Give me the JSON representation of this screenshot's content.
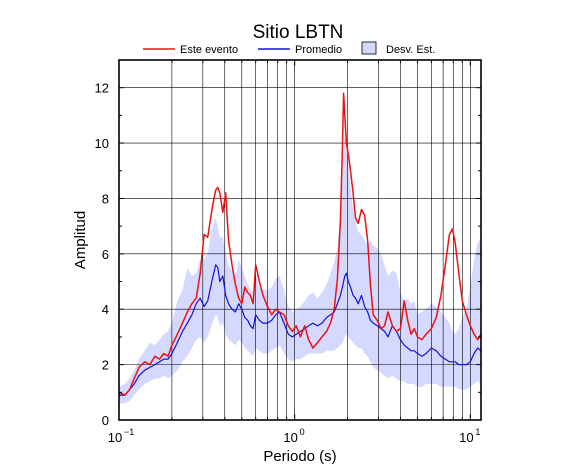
{
  "chart_data": {
    "type": "line",
    "title": "Sitio LBTN",
    "xlabel": "Periodo (s)",
    "ylabel": "Amplitud",
    "xscale": "log",
    "xlim": [
      0.1,
      11.5
    ],
    "ylim": [
      0,
      13
    ],
    "grid": true,
    "legend_placement": "top-center",
    "x_ticks": [
      {
        "base": "10",
        "exp": "−1",
        "value": 0.1
      },
      {
        "base": "10",
        "exp": "0",
        "value": 1
      },
      {
        "base": "10",
        "exp": "1",
        "value": 10
      }
    ],
    "y_ticks": [
      "0",
      "2",
      "4",
      "6",
      "8",
      "10",
      "12"
    ],
    "legend": [
      {
        "label": "Este evento",
        "color": "#ee1111",
        "kind": "line"
      },
      {
        "label": "Promedio",
        "color": "#1111dd",
        "kind": "line"
      },
      {
        "label": "Desv. Est.",
        "color": "#d6d9ff",
        "kind": "patch"
      }
    ],
    "series": [
      {
        "name": "Este evento",
        "color": "#ee1111",
        "x": [
          0.1,
          0.108,
          0.115,
          0.122,
          0.13,
          0.14,
          0.15,
          0.16,
          0.17,
          0.18,
          0.19,
          0.2,
          0.215,
          0.23,
          0.245,
          0.26,
          0.275,
          0.29,
          0.305,
          0.32,
          0.34,
          0.355,
          0.365,
          0.375,
          0.39,
          0.405,
          0.42,
          0.44,
          0.46,
          0.48,
          0.5,
          0.52,
          0.54,
          0.56,
          0.58,
          0.6,
          0.63,
          0.66,
          0.7,
          0.74,
          0.78,
          0.82,
          0.87,
          0.92,
          0.97,
          1.02,
          1.08,
          1.14,
          1.2,
          1.27,
          1.35,
          1.43,
          1.52,
          1.6,
          1.68,
          1.75,
          1.82,
          1.87,
          1.9,
          1.93,
          1.97,
          2.02,
          2.08,
          2.15,
          2.22,
          2.3,
          2.4,
          2.5,
          2.6,
          2.7,
          2.8,
          2.95,
          3.1,
          3.25,
          3.4,
          3.6,
          3.8,
          4.0,
          4.2,
          4.4,
          4.6,
          4.8,
          5.0,
          5.3,
          5.6,
          6.0,
          6.4,
          6.8,
          7.2,
          7.6,
          7.9,
          8.2,
          8.6,
          9.0,
          9.5,
          10.0,
          10.5,
          11.0,
          11.5
        ],
        "y": [
          1.0,
          0.9,
          1.1,
          1.5,
          1.9,
          2.1,
          2.0,
          2.3,
          2.2,
          2.4,
          2.3,
          2.7,
          3.1,
          3.5,
          3.9,
          4.2,
          4.4,
          5.3,
          6.7,
          6.6,
          7.7,
          8.3,
          8.4,
          8.2,
          7.5,
          8.2,
          6.5,
          5.6,
          4.9,
          4.4,
          4.2,
          4.8,
          4.6,
          4.5,
          4.2,
          5.6,
          5.0,
          4.5,
          4.1,
          3.8,
          4.0,
          3.9,
          3.8,
          3.4,
          3.2,
          3.4,
          3.0,
          3.4,
          2.9,
          2.6,
          2.8,
          3.0,
          3.2,
          3.5,
          4.0,
          5.1,
          7.2,
          9.8,
          11.8,
          11.0,
          10.0,
          9.6,
          9.0,
          8.2,
          7.3,
          7.1,
          7.6,
          7.4,
          6.5,
          4.9,
          3.8,
          3.6,
          3.3,
          3.4,
          3.9,
          3.4,
          3.2,
          3.3,
          4.3,
          3.6,
          3.1,
          3.3,
          3.0,
          2.9,
          3.1,
          3.3,
          3.7,
          4.5,
          5.6,
          6.7,
          6.9,
          6.4,
          5.3,
          4.3,
          3.8,
          3.4,
          3.1,
          2.9,
          3.1
        ]
      },
      {
        "name": "Promedio",
        "color": "#1111dd",
        "x": [
          0.1,
          0.108,
          0.115,
          0.122,
          0.13,
          0.14,
          0.15,
          0.16,
          0.17,
          0.18,
          0.19,
          0.2,
          0.215,
          0.23,
          0.245,
          0.26,
          0.275,
          0.29,
          0.305,
          0.32,
          0.34,
          0.355,
          0.365,
          0.375,
          0.39,
          0.405,
          0.42,
          0.44,
          0.46,
          0.48,
          0.5,
          0.52,
          0.54,
          0.56,
          0.58,
          0.6,
          0.63,
          0.66,
          0.7,
          0.74,
          0.78,
          0.82,
          0.87,
          0.92,
          0.97,
          1.02,
          1.08,
          1.14,
          1.2,
          1.27,
          1.35,
          1.43,
          1.52,
          1.6,
          1.68,
          1.75,
          1.82,
          1.87,
          1.9,
          1.93,
          1.97,
          2.02,
          2.08,
          2.15,
          2.22,
          2.3,
          2.4,
          2.5,
          2.6,
          2.7,
          2.8,
          2.95,
          3.1,
          3.25,
          3.4,
          3.6,
          3.8,
          4.0,
          4.2,
          4.4,
          4.6,
          4.8,
          5.0,
          5.3,
          5.6,
          6.0,
          6.4,
          6.8,
          7.2,
          7.6,
          7.9,
          8.2,
          8.6,
          9.0,
          9.5,
          10.0,
          10.5,
          11.0,
          11.5
        ],
        "y": [
          0.9,
          0.9,
          1.1,
          1.3,
          1.6,
          1.8,
          1.9,
          2.0,
          2.1,
          2.2,
          2.2,
          2.4,
          2.8,
          3.2,
          3.5,
          3.8,
          4.2,
          4.4,
          4.1,
          4.3,
          5.1,
          5.6,
          5.5,
          5.0,
          5.2,
          4.5,
          4.2,
          4.0,
          3.9,
          4.2,
          4.0,
          3.7,
          3.6,
          3.4,
          3.3,
          3.8,
          3.6,
          3.5,
          3.5,
          3.6,
          3.8,
          3.9,
          3.5,
          3.1,
          3.0,
          3.1,
          3.2,
          3.3,
          3.4,
          3.5,
          3.4,
          3.5,
          3.7,
          3.8,
          3.9,
          4.2,
          4.5,
          4.8,
          5.0,
          5.2,
          5.3,
          5.0,
          4.8,
          4.5,
          4.4,
          4.2,
          4.5,
          4.1,
          3.9,
          3.6,
          3.5,
          3.4,
          3.3,
          3.2,
          3.0,
          3.4,
          3.2,
          2.9,
          2.7,
          2.6,
          2.5,
          2.5,
          2.4,
          2.3,
          2.4,
          2.6,
          2.5,
          2.3,
          2.2,
          2.1,
          2.1,
          2.1,
          2.0,
          2.0,
          2.0,
          2.1,
          2.4,
          2.6,
          2.5
        ]
      }
    ],
    "band": {
      "name": "Desv. Est.",
      "color": "#d6d9ff",
      "x": [
        0.1,
        0.108,
        0.115,
        0.122,
        0.13,
        0.14,
        0.15,
        0.16,
        0.17,
        0.18,
        0.19,
        0.2,
        0.215,
        0.23,
        0.245,
        0.26,
        0.275,
        0.29,
        0.305,
        0.32,
        0.34,
        0.355,
        0.365,
        0.375,
        0.39,
        0.405,
        0.42,
        0.44,
        0.46,
        0.48,
        0.5,
        0.52,
        0.54,
        0.56,
        0.58,
        0.6,
        0.63,
        0.66,
        0.7,
        0.74,
        0.78,
        0.82,
        0.87,
        0.92,
        0.97,
        1.02,
        1.08,
        1.14,
        1.2,
        1.27,
        1.35,
        1.43,
        1.52,
        1.6,
        1.68,
        1.75,
        1.82,
        1.87,
        1.9,
        1.93,
        1.97,
        2.02,
        2.08,
        2.15,
        2.22,
        2.3,
        2.4,
        2.5,
        2.6,
        2.7,
        2.8,
        2.95,
        3.1,
        3.25,
        3.4,
        3.6,
        3.8,
        4.0,
        4.2,
        4.4,
        4.6,
        4.8,
        5.0,
        5.3,
        5.6,
        6.0,
        6.4,
        6.8,
        7.2,
        7.6,
        7.9,
        8.2,
        8.6,
        9.0,
        9.5,
        10.0,
        10.5,
        11.0,
        11.5
      ],
      "upper": [
        1.2,
        1.3,
        1.5,
        1.8,
        2.2,
        2.5,
        2.8,
        2.7,
        2.9,
        3.1,
        3.2,
        3.5,
        4.3,
        4.7,
        5.5,
        5.2,
        5.3,
        5.8,
        5.8,
        6.0,
        7.0,
        7.3,
        7.0,
        6.6,
        6.6,
        6.0,
        5.6,
        5.4,
        5.2,
        5.8,
        5.5,
        5.2,
        4.9,
        4.7,
        4.6,
        5.2,
        4.8,
        4.7,
        4.7,
        4.8,
        5.1,
        5.2,
        4.7,
        4.1,
        3.9,
        4.0,
        4.1,
        4.3,
        4.5,
        4.6,
        4.4,
        4.6,
        4.9,
        5.3,
        5.7,
        6.2,
        7.5,
        8.7,
        9.6,
        10.4,
        9.8,
        9.2,
        8.4,
        7.6,
        7.2,
        6.8,
        6.7,
        6.5,
        6.3,
        6.5,
        6.3,
        6.2,
        6.0,
        5.6,
        5.2,
        5.4,
        5.3,
        4.6,
        4.3,
        4.4,
        4.2,
        4.3,
        3.8,
        3.9,
        4.0,
        4.2,
        4.1,
        3.9,
        3.7,
        3.5,
        3.2,
        3.1,
        3.3,
        3.7,
        4.0,
        4.8,
        5.8,
        6.4,
        6.6
      ],
      "lower": [
        0.6,
        0.6,
        0.7,
        0.9,
        1.1,
        1.3,
        1.4,
        1.5,
        1.5,
        1.6,
        1.5,
        1.6,
        1.8,
        2.1,
        2.3,
        2.6,
        2.9,
        3.0,
        2.8,
        3.0,
        3.5,
        3.8,
        3.7,
        3.4,
        3.5,
        3.1,
        2.9,
        2.8,
        2.7,
        2.9,
        2.8,
        2.6,
        2.5,
        2.4,
        2.3,
        2.6,
        2.5,
        2.4,
        2.4,
        2.5,
        2.6,
        2.7,
        2.4,
        2.2,
        2.1,
        2.2,
        2.2,
        2.3,
        2.4,
        2.4,
        2.4,
        2.4,
        2.5,
        2.5,
        2.5,
        2.6,
        2.7,
        2.8,
        2.9,
        3.0,
        3.1,
        3.0,
        2.9,
        2.8,
        2.7,
        2.6,
        2.6,
        2.4,
        2.3,
        2.1,
        1.9,
        1.8,
        1.7,
        1.6,
        1.5,
        1.6,
        1.5,
        1.4,
        1.4,
        1.3,
        1.3,
        1.3,
        1.2,
        1.2,
        1.3,
        1.3,
        1.3,
        1.2,
        1.2,
        1.2,
        1.2,
        1.2,
        1.1,
        1.1,
        1.1,
        1.2,
        1.3,
        1.4,
        1.3
      ]
    }
  }
}
